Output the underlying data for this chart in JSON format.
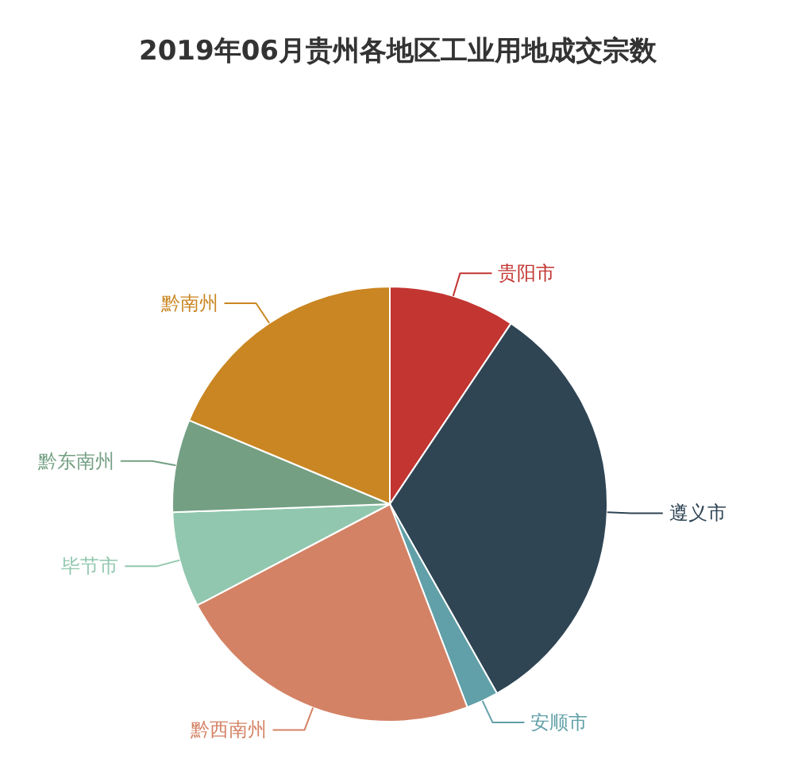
{
  "chart_data": {
    "type": "pie",
    "title": "2019年06月贵州各地区工业用地成交宗数",
    "categories": [
      "贵阳市",
      "遵义市",
      "安顺市",
      "黔西南州",
      "毕节市",
      "黔东南州",
      "黔南州"
    ],
    "values": [
      9.4,
      32.4,
      2.4,
      23.1,
      7.1,
      6.9,
      18.7
    ],
    "colors": [
      "#c23531",
      "#2f4554",
      "#61a0a8",
      "#d48265",
      "#91c7ae",
      "#749f83",
      "#ca8622"
    ]
  }
}
